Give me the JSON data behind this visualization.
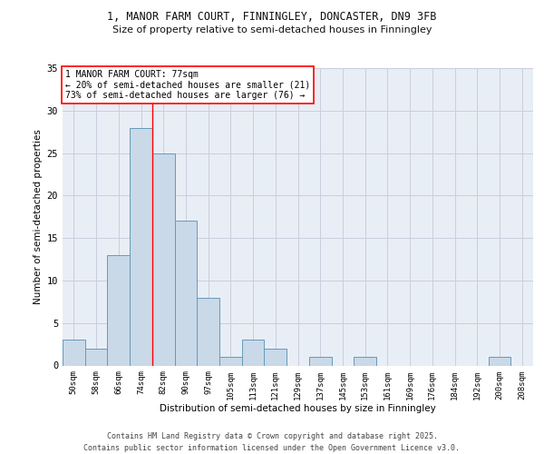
{
  "title_line1": "1, MANOR FARM COURT, FINNINGLEY, DONCASTER, DN9 3FB",
  "title_line2": "Size of property relative to semi-detached houses in Finningley",
  "xlabel": "Distribution of semi-detached houses by size in Finningley",
  "ylabel": "Number of semi-detached properties",
  "footer_line1": "Contains HM Land Registry data © Crown copyright and database right 2025.",
  "footer_line2": "Contains public sector information licensed under the Open Government Licence v3.0.",
  "bin_labels": [
    "50sqm",
    "58sqm",
    "66sqm",
    "74sqm",
    "82sqm",
    "90sqm",
    "97sqm",
    "105sqm",
    "113sqm",
    "121sqm",
    "129sqm",
    "137sqm",
    "145sqm",
    "153sqm",
    "161sqm",
    "169sqm",
    "176sqm",
    "184sqm",
    "192sqm",
    "200sqm",
    "208sqm"
  ],
  "bin_values": [
    3,
    2,
    13,
    28,
    25,
    17,
    8,
    1,
    3,
    2,
    0,
    1,
    0,
    1,
    0,
    0,
    0,
    0,
    0,
    1,
    0
  ],
  "bar_color": "#c9d9e8",
  "bar_edge_color": "#6699bb",
  "bar_edge_width": 0.7,
  "grid_color": "#ccccdd",
  "background_color": "#e8eef5",
  "annotation_box_text": "1 MANOR FARM COURT: 77sqm\n← 20% of semi-detached houses are smaller (21)\n73% of semi-detached houses are larger (76) →",
  "red_line_x": 3.5,
  "ylim": [
    0,
    35
  ],
  "yticks": [
    0,
    5,
    10,
    15,
    20,
    25,
    30,
    35
  ]
}
